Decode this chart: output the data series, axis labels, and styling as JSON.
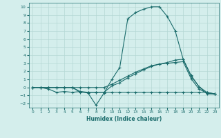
{
  "xlabel": "Humidex (Indice chaleur)",
  "ylabel": "",
  "xlim": [
    -0.5,
    23.5
  ],
  "ylim": [
    -2.5,
    10.5
  ],
  "xticks": [
    0,
    1,
    2,
    3,
    4,
    5,
    6,
    7,
    8,
    9,
    10,
    11,
    12,
    13,
    14,
    15,
    16,
    17,
    18,
    19,
    20,
    21,
    22,
    23
  ],
  "yticks": [
    -2,
    -1,
    0,
    1,
    2,
    3,
    4,
    5,
    6,
    7,
    8,
    9,
    10
  ],
  "bg_color": "#d4eeec",
  "grid_color": "#b5d8d5",
  "line_color": "#1a6b6b",
  "lines": [
    {
      "x": [
        0,
        1,
        2,
        3,
        4,
        5,
        6,
        7,
        8,
        9,
        10,
        11,
        12,
        13,
        14,
        15,
        16,
        17,
        18,
        19,
        20,
        21,
        22,
        23
      ],
      "y": [
        0,
        0,
        -0.2,
        -0.6,
        -0.5,
        -0.6,
        -0.5,
        -0.7,
        -2.2,
        -0.7,
        1.0,
        2.5,
        8.5,
        9.3,
        9.7,
        10.0,
        10.0,
        8.8,
        7.0,
        3.5,
        1.4,
        0.1,
        -0.8,
        -0.8
      ]
    },
    {
      "x": [
        0,
        1,
        2,
        3,
        4,
        5,
        6,
        7,
        8,
        9,
        10,
        11,
        12,
        13,
        14,
        15,
        16,
        17,
        18,
        19,
        20,
        21,
        22,
        23
      ],
      "y": [
        0,
        0,
        0,
        0,
        0,
        0,
        -0.5,
        -0.6,
        -0.6,
        -0.6,
        0.2,
        0.6,
        1.2,
        1.7,
        2.2,
        2.6,
        2.9,
        3.1,
        3.4,
        3.5,
        1.5,
        0.1,
        -0.6,
        -0.8
      ]
    },
    {
      "x": [
        0,
        1,
        2,
        3,
        4,
        5,
        6,
        7,
        8,
        9,
        10,
        11,
        12,
        13,
        14,
        15,
        16,
        17,
        18,
        19,
        20,
        21,
        22,
        23
      ],
      "y": [
        0,
        0,
        0,
        0,
        0,
        0,
        -0.6,
        -0.6,
        -0.6,
        -0.6,
        -0.6,
        -0.6,
        -0.6,
        -0.6,
        -0.6,
        -0.6,
        -0.6,
        -0.6,
        -0.6,
        -0.6,
        -0.6,
        -0.6,
        -0.6,
        -0.8
      ]
    },
    {
      "x": [
        0,
        1,
        2,
        3,
        4,
        5,
        6,
        7,
        8,
        9,
        10,
        11,
        12,
        13,
        14,
        15,
        16,
        17,
        18,
        19,
        20,
        21,
        22,
        23
      ],
      "y": [
        0,
        0,
        0,
        0,
        0,
        0,
        0,
        0,
        0,
        0,
        0.4,
        0.9,
        1.4,
        1.9,
        2.3,
        2.7,
        2.9,
        3.0,
        3.1,
        3.2,
        1.1,
        -0.2,
        -0.7,
        -0.8
      ]
    }
  ],
  "marker": "+",
  "markersize": 3,
  "markeredgewidth": 0.8,
  "linewidth": 0.8
}
